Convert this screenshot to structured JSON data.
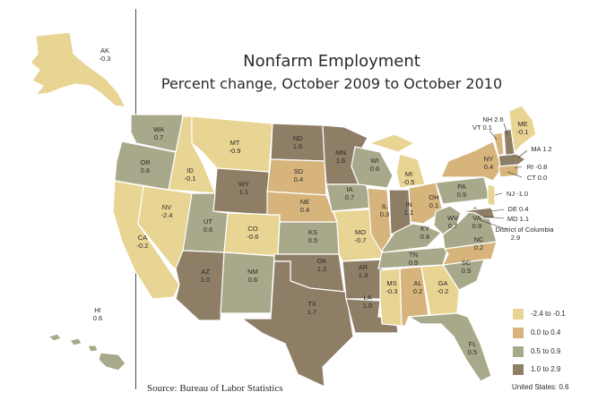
{
  "title": "Nonfarm Employment",
  "subtitle": "Percent change, October 2009 to October 2010",
  "source": "Source: Bureau of Labor Statistics",
  "us_total": "United States: 0.6",
  "colors": {
    "c1": "#e8d493",
    "c2": "#d6b47c",
    "c3": "#a8a98a",
    "c4": "#8e7e66"
  },
  "legend": [
    {
      "label": "-2.4 to -0.1",
      "color": "#e8d493"
    },
    {
      "label": "0.0 to 0.4",
      "color": "#d6b47c"
    },
    {
      "label": "0.5 to 0.9",
      "color": "#a8a98a"
    },
    {
      "label": "1.0 to 2.9",
      "color": "#8e7e66"
    }
  ],
  "states": {
    "AK": {
      "abbr": "AK",
      "value": "-0.3"
    },
    "HI": {
      "abbr": "HI",
      "value": "0.6"
    },
    "WA": {
      "abbr": "WA",
      "value": "0.7"
    },
    "OR": {
      "abbr": "OR",
      "value": "0.6"
    },
    "CA": {
      "abbr": "CA",
      "value": "-0.2"
    },
    "ID": {
      "abbr": "ID",
      "value": "-0.1"
    },
    "NV": {
      "abbr": "NV",
      "value": "-2.4"
    },
    "MT": {
      "abbr": "MT",
      "value": "-0.9"
    },
    "WY": {
      "abbr": "WY",
      "value": "1.1"
    },
    "UT": {
      "abbr": "UT",
      "value": "0.6"
    },
    "AZ": {
      "abbr": "AZ",
      "value": "1.0"
    },
    "CO": {
      "abbr": "CO",
      "value": "-0.6"
    },
    "NM": {
      "abbr": "NM",
      "value": "0.6"
    },
    "ND": {
      "abbr": "ND",
      "value": "1.6"
    },
    "SD": {
      "abbr": "SD",
      "value": "0.4"
    },
    "NE": {
      "abbr": "NE",
      "value": "0.4"
    },
    "KS": {
      "abbr": "KS",
      "value": "0.5"
    },
    "OK": {
      "abbr": "OK",
      "value": "1.2"
    },
    "TX": {
      "abbr": "TX",
      "value": "1.7"
    },
    "MN": {
      "abbr": "MN",
      "value": "1.6"
    },
    "IA": {
      "abbr": "IA",
      "value": "0.7"
    },
    "MO": {
      "abbr": "MO",
      "value": "-0.7"
    },
    "AR": {
      "abbr": "AR",
      "value": "1.3"
    },
    "LA": {
      "abbr": "LA",
      "value": "1.0"
    },
    "WI": {
      "abbr": "WI",
      "value": "0.6"
    },
    "IL": {
      "abbr": "IL",
      "value": "0.3"
    },
    "MI": {
      "abbr": "MI",
      "value": "-0.5"
    },
    "IN": {
      "abbr": "IN",
      "value": "1.1"
    },
    "OH": {
      "abbr": "OH",
      "value": "0.1"
    },
    "KY": {
      "abbr": "KY",
      "value": "0.8"
    },
    "TN": {
      "abbr": "TN",
      "value": "0.9"
    },
    "MS": {
      "abbr": "MS",
      "value": "-0.3"
    },
    "AL": {
      "abbr": "AL",
      "value": "0.2"
    },
    "GA": {
      "abbr": "GA",
      "value": "-0.2"
    },
    "FL": {
      "abbr": "FL",
      "value": "0.5"
    },
    "SC": {
      "abbr": "SC",
      "value": "0.9"
    },
    "NC": {
      "abbr": "NC",
      "value": "0.2"
    },
    "VA": {
      "abbr": "VA",
      "value": "0.9"
    },
    "WV": {
      "abbr": "WV",
      "value": "0.7"
    },
    "PA": {
      "abbr": "PA",
      "value": "0.9"
    },
    "NY": {
      "abbr": "NY",
      "value": "0.4"
    },
    "ME": {
      "abbr": "ME",
      "value": "-0.1"
    },
    "NH": {
      "label": "NH 2.6"
    },
    "VT": {
      "label": "VT 0.1"
    },
    "MA": {
      "label": "MA 1.2"
    },
    "RI": {
      "label": "RI -0.8"
    },
    "CT": {
      "label": "CT 0.0"
    },
    "NJ": {
      "label": "NJ -1.0"
    },
    "DE": {
      "label": "DE 0.4"
    },
    "MD": {
      "label": "MD 1.1"
    },
    "DC": {
      "name": "District of Columbia",
      "value": "2.9"
    }
  }
}
